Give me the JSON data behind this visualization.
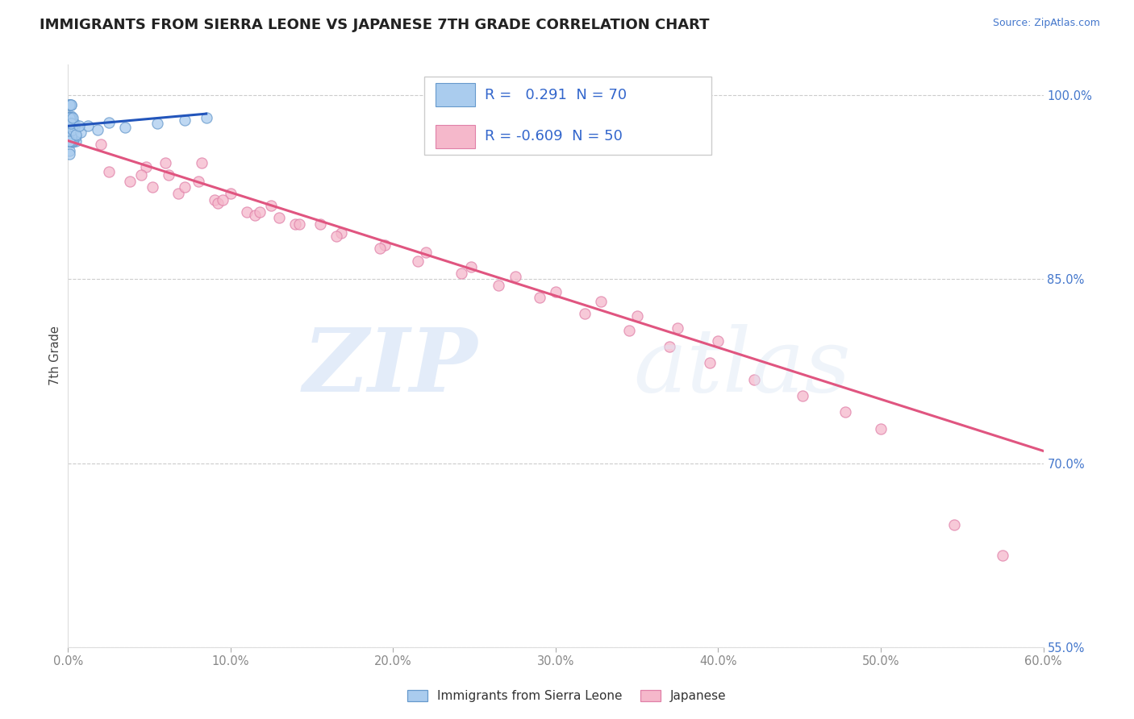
{
  "title": "IMMIGRANTS FROM SIERRA LEONE VS JAPANESE 7TH GRADE CORRELATION CHART",
  "source_text": "Source: ZipAtlas.com",
  "ylabel": "7th Grade",
  "xlim": [
    0.0,
    0.6
  ],
  "ylim": [
    0.595,
    1.025
  ],
  "xtick_labels": [
    "0.0%",
    "10.0%",
    "20.0%",
    "30.0%",
    "40.0%",
    "50.0%",
    "60.0%"
  ],
  "xtick_vals": [
    0.0,
    0.1,
    0.2,
    0.3,
    0.4,
    0.5,
    0.6
  ],
  "ytick_labels": [
    "100.0%",
    "85.0%",
    "70.0%",
    "55.0%"
  ],
  "ytick_vals": [
    1.0,
    0.85,
    0.7,
    0.55
  ],
  "watermark_zip": "ZIP",
  "watermark_atlas": "atlas",
  "blue_scatter_x": [
    0.001,
    0.002,
    0.001,
    0.003,
    0.002,
    0.001,
    0.004,
    0.002,
    0.001,
    0.003,
    0.005,
    0.002,
    0.001,
    0.002,
    0.001,
    0.003,
    0.001,
    0.002,
    0.004,
    0.001,
    0.002,
    0.001,
    0.003,
    0.001,
    0.002,
    0.001,
    0.005,
    0.002,
    0.001,
    0.003,
    0.001,
    0.002,
    0.001,
    0.002,
    0.001,
    0.001,
    0.002,
    0.001,
    0.002,
    0.001,
    0.001,
    0.002,
    0.001,
    0.003,
    0.001,
    0.002,
    0.001,
    0.004,
    0.002,
    0.001,
    0.003,
    0.001,
    0.002,
    0.004,
    0.001,
    0.002,
    0.003,
    0.001,
    0.002,
    0.003,
    0.008,
    0.012,
    0.018,
    0.025,
    0.035,
    0.055,
    0.072,
    0.085,
    0.005,
    0.007
  ],
  "blue_scatter_y": [
    0.975,
    0.982,
    0.965,
    0.978,
    0.968,
    0.992,
    0.972,
    0.982,
    0.955,
    0.972,
    0.963,
    0.983,
    0.974,
    0.992,
    0.977,
    0.962,
    0.974,
    0.982,
    0.977,
    0.992,
    0.974,
    0.963,
    0.978,
    0.982,
    0.974,
    0.992,
    0.967,
    0.974,
    0.977,
    0.972,
    0.963,
    0.977,
    0.974,
    0.967,
    0.972,
    0.978,
    0.981,
    0.977,
    0.982,
    0.977,
    0.974,
    0.992,
    0.952,
    0.963,
    0.974,
    0.977,
    0.982,
    0.974,
    0.963,
    0.974,
    0.977,
    0.972,
    0.967,
    0.974,
    0.982,
    0.977,
    0.972,
    0.963,
    0.977,
    0.982,
    0.97,
    0.975,
    0.972,
    0.978,
    0.974,
    0.977,
    0.98,
    0.982,
    0.968,
    0.975
  ],
  "pink_scatter_x": [
    0.02,
    0.048,
    0.062,
    0.082,
    0.025,
    0.038,
    0.052,
    0.068,
    0.09,
    0.11,
    0.13,
    0.155,
    0.1,
    0.125,
    0.08,
    0.06,
    0.045,
    0.092,
    0.115,
    0.14,
    0.168,
    0.195,
    0.22,
    0.248,
    0.275,
    0.3,
    0.328,
    0.35,
    0.375,
    0.4,
    0.072,
    0.095,
    0.118,
    0.142,
    0.165,
    0.192,
    0.215,
    0.242,
    0.265,
    0.29,
    0.318,
    0.345,
    0.37,
    0.395,
    0.422,
    0.452,
    0.478,
    0.5,
    0.545,
    0.575
  ],
  "pink_scatter_y": [
    0.96,
    0.942,
    0.935,
    0.945,
    0.938,
    0.93,
    0.925,
    0.92,
    0.915,
    0.905,
    0.9,
    0.895,
    0.92,
    0.91,
    0.93,
    0.945,
    0.935,
    0.912,
    0.902,
    0.895,
    0.888,
    0.878,
    0.872,
    0.86,
    0.852,
    0.84,
    0.832,
    0.82,
    0.81,
    0.8,
    0.925,
    0.915,
    0.905,
    0.895,
    0.885,
    0.875,
    0.865,
    0.855,
    0.845,
    0.835,
    0.822,
    0.808,
    0.795,
    0.782,
    0.768,
    0.755,
    0.742,
    0.728,
    0.65,
    0.625
  ],
  "blue_line_x": [
    0.0,
    0.085
  ],
  "blue_line_y": [
    0.975,
    0.985
  ],
  "pink_line_x": [
    0.0,
    0.6
  ],
  "pink_line_y": [
    0.963,
    0.71
  ],
  "blue_color": "#aaccee",
  "blue_edge": "#6699cc",
  "pink_color": "#f5b8cb",
  "pink_edge": "#e080a8",
  "blue_line_color": "#2255bb",
  "pink_line_color": "#e05580",
  "legend_blue_r": "0.291",
  "legend_blue_n": "70",
  "legend_pink_r": "-0.609",
  "legend_pink_n": "50",
  "legend_blue_label": "Immigrants from Sierra Leone",
  "legend_pink_label": "Japanese",
  "grid_color": "#cccccc",
  "bg_color": "#ffffff",
  "title_color": "#222222",
  "title_fontsize": 13,
  "source_fontsize": 9,
  "tick_color_x": "#888888",
  "tick_color_y": "#4477cc"
}
